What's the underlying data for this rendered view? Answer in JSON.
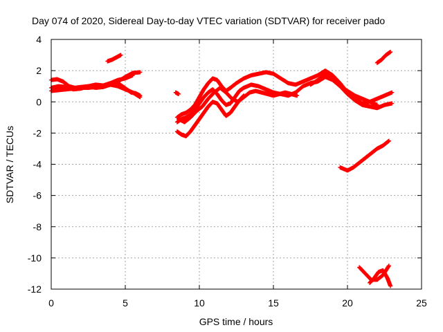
{
  "chart_data": {
    "type": "scatter",
    "title": "Day 074 of 2020, Sidereal Day-to-day VTEC variation (SDTVAR) for receiver pado",
    "xlabel": "GPS time / hours",
    "ylabel": "SDTVAR / TECUs",
    "xlim": [
      0,
      25
    ],
    "ylim": [
      -12,
      4
    ],
    "xticks": [
      0,
      5,
      10,
      15,
      20,
      25
    ],
    "yticks": [
      -12,
      -10,
      -8,
      -6,
      -4,
      -2,
      0,
      2,
      4
    ],
    "xtick_labels": [
      "0",
      "5",
      "10",
      "15",
      "20",
      "25"
    ],
    "ytick_labels": [
      "-12",
      "-10",
      "-8",
      "-6",
      "-4",
      "-2",
      "0",
      "2",
      "4"
    ],
    "grid": true,
    "marker_color": "#ff0000",
    "series": [
      {
        "name": "s1",
        "x": [
          0,
          0.5,
          1,
          1.5,
          2,
          2.5,
          3,
          3.5,
          4,
          4.5,
          5,
          5.5,
          6
        ],
        "y": [
          0.7,
          0.75,
          0.8,
          0.85,
          0.9,
          0.9,
          0.95,
          1.0,
          1.1,
          1.3,
          1.6,
          1.85,
          1.9
        ]
      },
      {
        "name": "s2",
        "x": [
          0,
          0.4,
          0.8,
          1.2,
          1.6,
          2,
          2.5,
          3,
          3.5,
          4,
          4.5,
          5,
          5.5,
          6
        ],
        "y": [
          1.4,
          1.45,
          1.3,
          1.0,
          0.9,
          0.95,
          1.0,
          0.9,
          0.95,
          1.1,
          1.0,
          0.8,
          0.6,
          0.3
        ]
      },
      {
        "name": "s3",
        "x": [
          0,
          0.5,
          1,
          1.5,
          2,
          2.5,
          3,
          3.5,
          4,
          4.5,
          5,
          5.5
        ],
        "y": [
          0.9,
          1.0,
          0.95,
          0.8,
          0.85,
          1.0,
          1.1,
          1.05,
          1.2,
          1.4,
          1.5,
          1.7
        ]
      },
      {
        "name": "s4",
        "x": [
          4.5,
          4.8,
          5.1,
          5.4,
          5.7,
          6.0
        ],
        "y": [
          1.2,
          1.0,
          0.8,
          0.6,
          0.55,
          0.4
        ]
      },
      {
        "name": "s5",
        "x": [
          3.8,
          4.1,
          4.4,
          4.7
        ],
        "y": [
          2.6,
          2.7,
          2.85,
          3.0
        ]
      },
      {
        "name": "s6",
        "x": [
          8.4,
          8.6
        ],
        "y": [
          0.6,
          0.5
        ]
      },
      {
        "name": "s7",
        "x": [
          8.5,
          8.8,
          9.1,
          9.4,
          9.7,
          10,
          10.3,
          10.6,
          10.9,
          11.2,
          11.5,
          11.8,
          12.1,
          12.5,
          13,
          13.5,
          14,
          14.5,
          15,
          15.5,
          16,
          16.5,
          17,
          17.5,
          18,
          18.5,
          19,
          19.5,
          20,
          20.5,
          21,
          21.5,
          22,
          22.5,
          23
        ],
        "y": [
          -1.0,
          -0.8,
          -0.7,
          -0.5,
          -0.2,
          0.3,
          0.8,
          1.2,
          1.5,
          1.4,
          1.0,
          0.7,
          0.9,
          1.2,
          1.5,
          1.7,
          1.8,
          1.9,
          1.8,
          1.5,
          1.2,
          1.1,
          1.3,
          1.5,
          1.7,
          2.0,
          1.7,
          1.2,
          0.6,
          0.2,
          -0.1,
          0.0,
          0.2,
          0.4,
          0.6
        ]
      },
      {
        "name": "s8",
        "x": [
          8.5,
          8.8,
          9.1,
          9.4,
          9.7,
          10,
          10.3,
          10.6,
          10.9,
          11.2,
          11.5,
          11.8,
          12.1,
          12.4,
          12.7,
          13,
          13.5,
          14,
          14.5,
          15,
          15.5,
          16,
          16.5,
          17,
          17.5,
          18,
          18.5,
          19,
          19.5,
          20,
          20.5,
          21,
          21.5,
          22
        ],
        "y": [
          -1.3,
          -1.1,
          -1.0,
          -0.8,
          -0.5,
          -0.1,
          0.3,
          0.6,
          0.8,
          0.5,
          0.1,
          -0.2,
          -0.1,
          0.3,
          0.7,
          0.9,
          1.1,
          1.0,
          0.8,
          0.6,
          0.5,
          0.4,
          0.6,
          1.0,
          1.2,
          1.3,
          1.6,
          1.4,
          1.0,
          0.7,
          0.4,
          0.2,
          0.0,
          -0.2
        ]
      },
      {
        "name": "s9",
        "x": [
          8.5,
          8.8,
          9.1,
          9.4,
          9.7,
          10,
          10.3,
          10.6,
          10.9,
          11.2,
          11.5,
          11.8,
          12.1,
          12.4,
          12.7,
          13
        ],
        "y": [
          -1.9,
          -2.1,
          -2.2,
          -1.9,
          -1.5,
          -1.1,
          -0.7,
          -0.3,
          0.0,
          -0.1,
          -0.5,
          -0.9,
          -0.7,
          -0.3,
          0.1,
          0.4
        ]
      },
      {
        "name": "s10",
        "x": [
          8.6,
          9.0,
          9.4,
          9.8,
          10.2,
          10.6,
          11.0,
          11.4,
          11.8,
          12.2,
          12.6,
          13.0,
          13.4,
          13.8,
          14.2,
          14.6,
          15.0,
          15.4,
          15.8,
          16.2,
          16.6
        ],
        "y": [
          -1.1,
          -1.3,
          -1.0,
          -0.6,
          -0.3,
          0.2,
          0.6,
          0.9,
          0.6,
          0.2,
          0.0,
          0.3,
          0.6,
          0.7,
          0.6,
          0.5,
          0.4,
          0.5,
          0.6,
          0.5,
          0.4
        ]
      },
      {
        "name": "s11",
        "x": [
          17.5,
          18,
          18.5,
          19,
          19.5,
          20,
          20.5,
          21,
          21.5,
          22,
          22.5,
          23
        ],
        "y": [
          1.1,
          1.4,
          1.8,
          1.6,
          1.0,
          0.5,
          0.1,
          -0.2,
          -0.3,
          -0.4,
          -0.2,
          -0.1
        ]
      },
      {
        "name": "s12",
        "x": [
          19.5,
          20,
          20.4,
          20.8,
          21.2,
          21.6,
          22,
          22.4,
          22.8
        ],
        "y": [
          -4.2,
          -4.4,
          -4.2,
          -3.9,
          -3.6,
          -3.3,
          -3.0,
          -2.8,
          -2.5
        ]
      },
      {
        "name": "s13",
        "x": [
          22.0,
          22.3,
          22.6,
          22.9
        ],
        "y": [
          2.5,
          2.7,
          3.0,
          3.2
        ]
      },
      {
        "name": "s14",
        "x": [
          20.8,
          21.2,
          21.6,
          22.0,
          22.4,
          22.8
        ],
        "y": [
          -10.6,
          -11.0,
          -11.4,
          -11.4,
          -11.1,
          -10.5
        ]
      },
      {
        "name": "s15",
        "x": [
          21.5,
          21.8,
          22.1,
          22.4,
          22.7,
          22.9
        ],
        "y": [
          -11.6,
          -11.3,
          -10.9,
          -10.8,
          -11.3,
          -11.8
        ]
      }
    ]
  }
}
